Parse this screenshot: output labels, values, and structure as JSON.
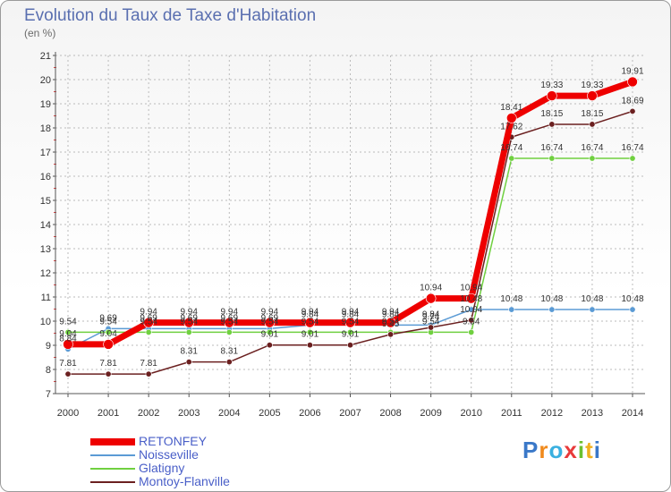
{
  "header": {
    "title": "Evolution du Taux de Taxe d'Habitation",
    "unit": "(en %)"
  },
  "brand": {
    "name": "Proxiti"
  },
  "colors": {
    "RETONFEY": "#ee0000",
    "Noisseville": "#5b9bd5",
    "Glatigny": "#70d040",
    "Montoy-Flanville": "#6b2020",
    "axis": "#555555",
    "grid": "#bbbbbb"
  },
  "chart_data": {
    "type": "line",
    "title": "Evolution du Taux de Taxe d'Habitation",
    "ylabel": "(en %)",
    "x": [
      2000,
      2001,
      2002,
      2003,
      2004,
      2005,
      2006,
      2007,
      2008,
      2009,
      2010,
      2011,
      2012,
      2013,
      2014
    ],
    "ylim": [
      7,
      21
    ],
    "yticks": [
      7,
      8,
      9,
      10,
      11,
      12,
      13,
      14,
      15,
      16,
      17,
      18,
      19,
      20,
      21
    ],
    "legend_position": "bottom-left",
    "series": [
      {
        "name": "RETONFEY",
        "values": [
          9.04,
          9.04,
          9.94,
          9.94,
          9.94,
          9.94,
          9.94,
          9.94,
          9.94,
          10.94,
          10.94,
          18.41,
          19.33,
          19.33,
          19.91
        ]
      },
      {
        "name": "Noisseville",
        "values": [
          8.84,
          9.69,
          9.69,
          9.69,
          9.69,
          9.69,
          9.84,
          9.84,
          9.84,
          9.84,
          10.48,
          10.48,
          10.48,
          10.48,
          10.48
        ]
      },
      {
        "name": "Glatigny",
        "values": [
          9.54,
          9.54,
          9.54,
          9.54,
          9.54,
          9.54,
          9.54,
          9.54,
          9.54,
          9.54,
          9.54,
          16.74,
          16.74,
          16.74,
          16.74
        ]
      },
      {
        "name": "Montoy-Flanville",
        "values": [
          7.81,
          7.81,
          7.81,
          8.31,
          8.31,
          9.01,
          9.01,
          9.01,
          9.45,
          9.74,
          10.04,
          17.62,
          18.15,
          18.15,
          18.69
        ]
      }
    ]
  }
}
